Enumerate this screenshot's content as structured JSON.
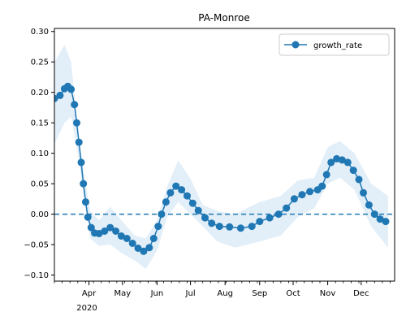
{
  "chart_data": {
    "type": "line",
    "title": "PA-Monroe",
    "xlabel": "",
    "ylabel": "",
    "ylim": [
      -0.11,
      0.305
    ],
    "xlim": [
      "2020-03-01",
      "2020-12-31"
    ],
    "yticks": [
      -0.1,
      -0.05,
      0.0,
      0.05,
      0.1,
      0.15,
      0.2,
      0.25,
      0.3
    ],
    "ytick_labels": [
      "−0.10",
      "−0.05",
      "0.00",
      "0.05",
      "0.10",
      "0.15",
      "0.20",
      "0.25",
      "0.30"
    ],
    "xticks": [
      {
        "label": "Apr",
        "date": "2020-04-01"
      },
      {
        "label": "May",
        "date": "2020-05-01"
      },
      {
        "label": "Jun",
        "date": "2020-06-01"
      },
      {
        "label": "Jul",
        "date": "2020-07-01"
      },
      {
        "label": "Aug",
        "date": "2020-08-01"
      },
      {
        "label": "Sep",
        "date": "2020-09-01"
      },
      {
        "label": "Oct",
        "date": "2020-10-01"
      },
      {
        "label": "Nov",
        "date": "2020-11-01"
      },
      {
        "label": "Dec",
        "date": "2020-12-01"
      }
    ],
    "year_label": "2020",
    "reference_line": {
      "y": 0.0,
      "style": "dashed"
    },
    "colors": {
      "series": "#1f77b4",
      "band": "#cfe2f3"
    },
    "legend": {
      "position": "top-right"
    },
    "series": [
      {
        "name": "growth_rate",
        "points": [
          [
            "2020-03-01",
            0.19
          ],
          [
            "2020-03-06",
            0.195
          ],
          [
            "2020-03-10",
            0.206
          ],
          [
            "2020-03-13",
            0.21
          ],
          [
            "2020-03-16",
            0.205
          ],
          [
            "2020-03-19",
            0.18
          ],
          [
            "2020-03-21",
            0.15
          ],
          [
            "2020-03-23",
            0.118
          ],
          [
            "2020-03-25",
            0.085
          ],
          [
            "2020-03-27",
            0.05
          ],
          [
            "2020-03-29",
            0.02
          ],
          [
            "2020-03-31",
            -0.005
          ],
          [
            "2020-04-03",
            -0.022
          ],
          [
            "2020-04-06",
            -0.031
          ],
          [
            "2020-04-10",
            -0.032
          ],
          [
            "2020-04-15",
            -0.028
          ],
          [
            "2020-04-20",
            -0.022
          ],
          [
            "2020-04-25",
            -0.028
          ],
          [
            "2020-04-30",
            -0.036
          ],
          [
            "2020-05-05",
            -0.04
          ],
          [
            "2020-05-10",
            -0.048
          ],
          [
            "2020-05-15",
            -0.056
          ],
          [
            "2020-05-20",
            -0.061
          ],
          [
            "2020-05-25",
            -0.055
          ],
          [
            "2020-05-29",
            -0.04
          ],
          [
            "2020-06-02",
            -0.02
          ],
          [
            "2020-06-05",
            0.0
          ],
          [
            "2020-06-09",
            0.02
          ],
          [
            "2020-06-13",
            0.035
          ],
          [
            "2020-06-18",
            0.046
          ],
          [
            "2020-06-23",
            0.04
          ],
          [
            "2020-06-28",
            0.03
          ],
          [
            "2020-07-03",
            0.018
          ],
          [
            "2020-07-08",
            0.006
          ],
          [
            "2020-07-14",
            -0.006
          ],
          [
            "2020-07-20",
            -0.015
          ],
          [
            "2020-07-27",
            -0.02
          ],
          [
            "2020-08-05",
            -0.021
          ],
          [
            "2020-08-15",
            -0.023
          ],
          [
            "2020-08-25",
            -0.02
          ],
          [
            "2020-09-01",
            -0.012
          ],
          [
            "2020-09-10",
            -0.006
          ],
          [
            "2020-09-18",
            0.0
          ],
          [
            "2020-09-25",
            0.01
          ],
          [
            "2020-10-02",
            0.025
          ],
          [
            "2020-10-09",
            0.032
          ],
          [
            "2020-10-16",
            0.037
          ],
          [
            "2020-10-23",
            0.04
          ],
          [
            "2020-10-27",
            0.046
          ],
          [
            "2020-10-31",
            0.065
          ],
          [
            "2020-11-04",
            0.085
          ],
          [
            "2020-11-09",
            0.091
          ],
          [
            "2020-11-14",
            0.089
          ],
          [
            "2020-11-19",
            0.085
          ],
          [
            "2020-11-24",
            0.072
          ],
          [
            "2020-11-29",
            0.057
          ],
          [
            "2020-12-03",
            0.035
          ],
          [
            "2020-12-08",
            0.015
          ],
          [
            "2020-12-13",
            0.0
          ],
          [
            "2020-12-18",
            -0.008
          ],
          [
            "2020-12-23",
            -0.012
          ]
        ],
        "band": [
          [
            "2020-03-01",
            0.115,
            0.25
          ],
          [
            "2020-03-10",
            0.15,
            0.278
          ],
          [
            "2020-03-16",
            0.16,
            0.25
          ],
          [
            "2020-03-22",
            0.1,
            0.14
          ],
          [
            "2020-03-28",
            0.02,
            0.06
          ],
          [
            "2020-04-02",
            -0.04,
            0.005
          ],
          [
            "2020-04-10",
            -0.052,
            -0.01
          ],
          [
            "2020-04-20",
            -0.05,
            0.012
          ],
          [
            "2020-05-01",
            -0.065,
            -0.012
          ],
          [
            "2020-05-12",
            -0.076,
            -0.035
          ],
          [
            "2020-05-22",
            -0.09,
            -0.04
          ],
          [
            "2020-06-01",
            -0.06,
            -0.01
          ],
          [
            "2020-06-10",
            -0.005,
            0.045
          ],
          [
            "2020-06-20",
            0.02,
            0.088
          ],
          [
            "2020-07-01",
            0.0,
            0.058
          ],
          [
            "2020-07-12",
            -0.02,
            0.015
          ],
          [
            "2020-07-25",
            -0.045,
            0.005
          ],
          [
            "2020-08-10",
            -0.055,
            0.0
          ],
          [
            "2020-09-01",
            -0.045,
            0.02
          ],
          [
            "2020-09-20",
            -0.035,
            0.03
          ],
          [
            "2020-10-05",
            -0.005,
            0.055
          ],
          [
            "2020-10-20",
            0.01,
            0.06
          ],
          [
            "2020-11-01",
            0.05,
            0.11
          ],
          [
            "2020-11-12",
            0.06,
            0.12
          ],
          [
            "2020-11-25",
            0.04,
            0.1
          ],
          [
            "2020-12-10",
            -0.02,
            0.05
          ],
          [
            "2020-12-25",
            -0.055,
            0.03
          ]
        ]
      }
    ]
  }
}
